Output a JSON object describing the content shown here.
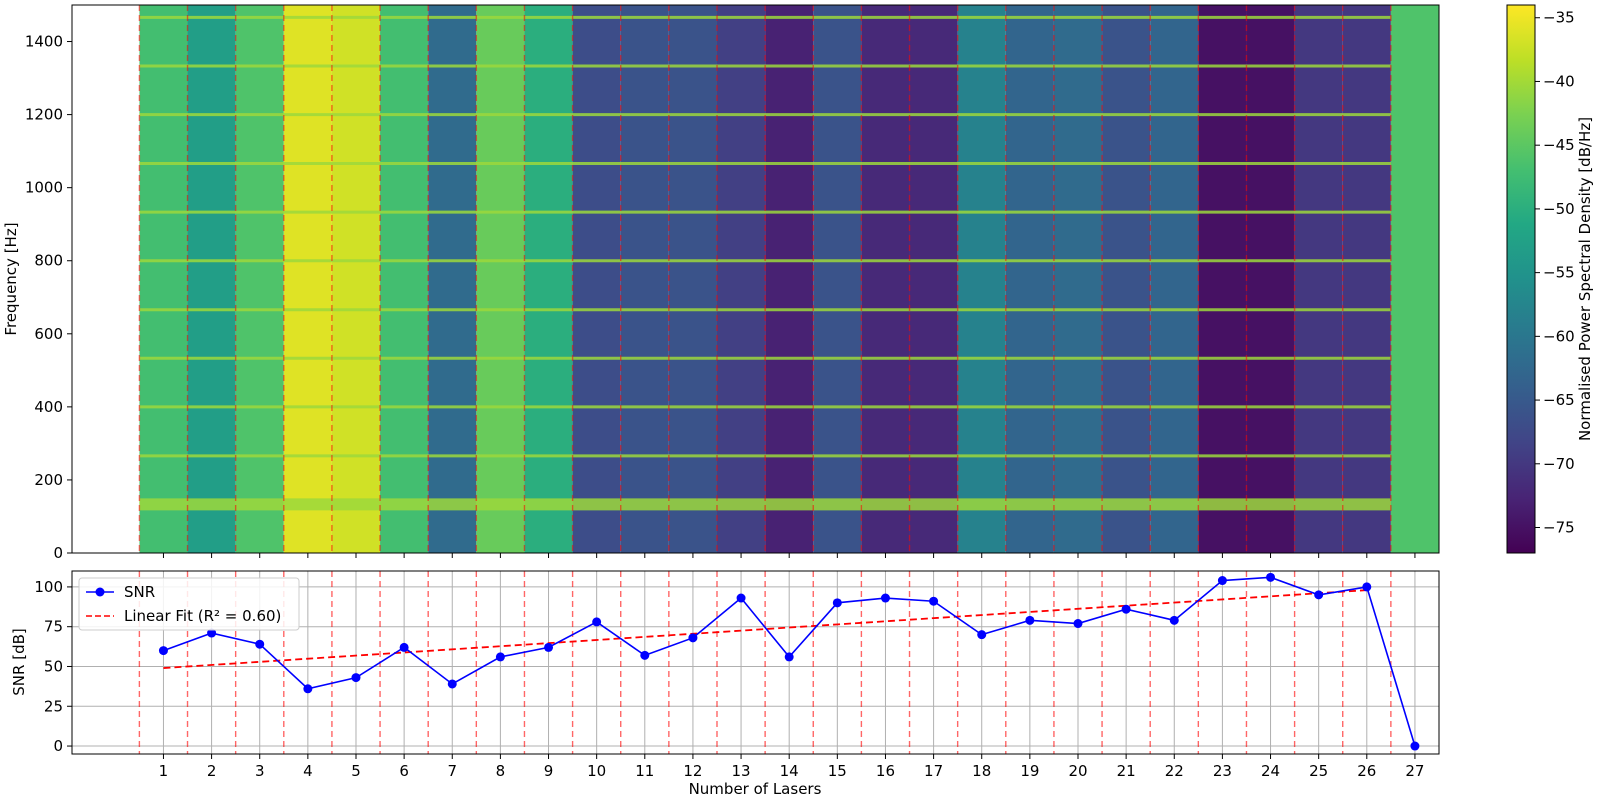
{
  "chart_data": [
    {
      "type": "heatmap",
      "title": "",
      "xlabel": "",
      "ylabel": "Frequency [Hz]",
      "ylim": [
        0,
        1500
      ],
      "y_ticks": [
        0,
        200,
        400,
        600,
        800,
        1000,
        1200,
        1400
      ],
      "colorbar": {
        "label": "Normalised Power Spectral Density [dB/Hz]",
        "range": [
          -77,
          -34
        ],
        "ticks": [
          -35,
          -40,
          -45,
          -50,
          -55,
          -60,
          -65,
          -70,
          -75
        ],
        "colormap": "viridis"
      },
      "segments": {
        "x_range": [
          0.5,
          27.5
        ],
        "boundaries": [
          0.5,
          1.5,
          2.5,
          3.5,
          4.5,
          5.5,
          6.5,
          7.5,
          8.5,
          9.5,
          10.5,
          11.5,
          12.5,
          13.5,
          14.5,
          15.5,
          16.5,
          17.5,
          18.5,
          19.5,
          20.5,
          21.5,
          22.5,
          23.5,
          24.5,
          25.5,
          26.5
        ],
        "background_level_db": [
          -47,
          -53,
          -46,
          -36,
          -37,
          -47,
          -62,
          -44,
          -50,
          -67,
          -66,
          -66,
          -69,
          -73,
          -66,
          -72,
          -72,
          -58,
          -63,
          -62,
          -66,
          -63,
          -75,
          -75,
          -70,
          -70,
          -46
        ]
      },
      "harmonic_lines_hz": [
        133,
        266,
        400,
        533,
        666,
        800,
        933,
        1066,
        1200,
        1333,
        1466
      ]
    },
    {
      "type": "line",
      "xlabel": "Number of Lasers",
      "ylabel": "SNR [dB]",
      "xlim": [
        -0.9,
        27.5
      ],
      "ylim": [
        -5,
        110
      ],
      "x_ticks": [
        1,
        2,
        3,
        4,
        5,
        6,
        7,
        8,
        9,
        10,
        11,
        12,
        13,
        14,
        15,
        16,
        17,
        18,
        19,
        20,
        21,
        22,
        23,
        24,
        25,
        26,
        27
      ],
      "y_ticks": [
        0,
        25,
        50,
        75,
        100
      ],
      "grid": true,
      "legend_position": "top-left",
      "series": [
        {
          "name": "SNR",
          "style": "solid-with-markers",
          "color": "#0000ff",
          "x": [
            1,
            2,
            3,
            4,
            5,
            6,
            7,
            8,
            9,
            10,
            11,
            12,
            13,
            14,
            15,
            16,
            17,
            18,
            19,
            20,
            21,
            22,
            23,
            24,
            25,
            26,
            27
          ],
          "y": [
            60,
            71,
            64,
            36,
            43,
            62,
            39,
            56,
            62,
            78,
            57,
            68,
            93,
            56,
            90,
            93,
            91,
            70,
            79,
            77,
            86,
            79,
            104,
            106,
            95,
            100,
            0
          ]
        },
        {
          "name": "Linear Fit (R² = 0.60)",
          "style": "dashed",
          "color": "#ff0000",
          "x": [
            1,
            26
          ],
          "y": [
            49,
            98
          ]
        }
      ],
      "vlines": {
        "x": [
          0.5,
          1.5,
          2.5,
          3.5,
          4.5,
          5.5,
          6.5,
          7.5,
          8.5,
          9.5,
          10.5,
          11.5,
          12.5,
          13.5,
          14.5,
          15.5,
          16.5,
          17.5,
          18.5,
          19.5,
          20.5,
          21.5,
          22.5,
          23.5,
          24.5,
          25.5,
          26.5
        ],
        "color": "#ff0000",
        "style": "dashed"
      }
    }
  ]
}
